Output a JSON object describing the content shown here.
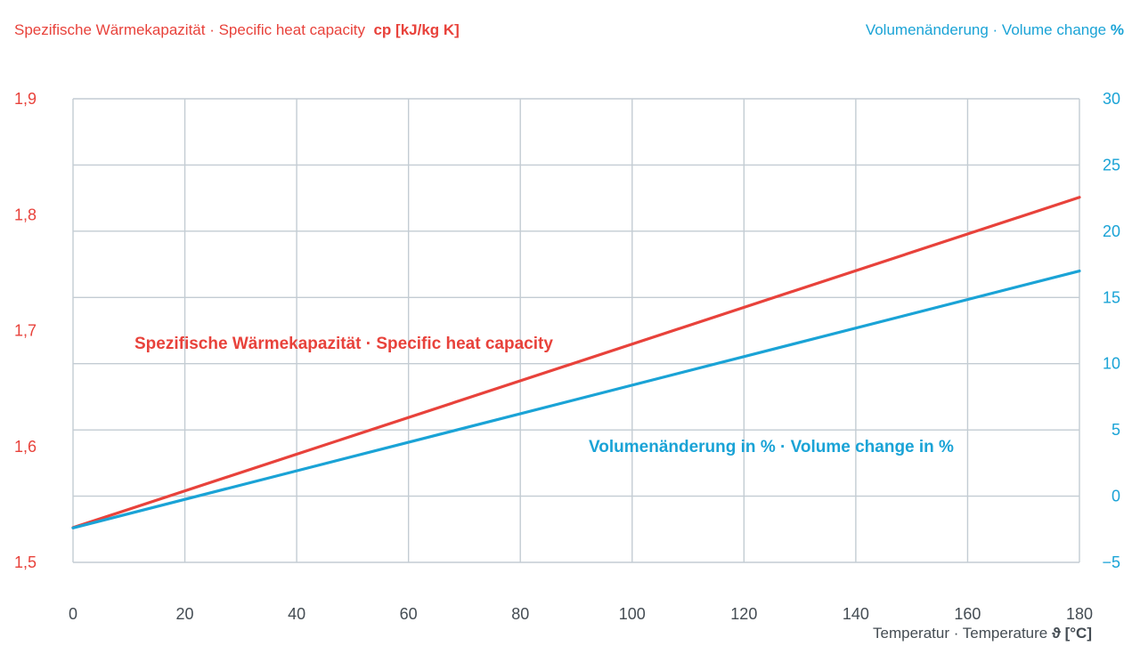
{
  "header": {
    "left_label": "Spezifische Wärmekapazität · Specific heat capacity",
    "left_unit": "cp [kJ/kg K]",
    "right_label": "Volumenänderung · Volume change",
    "right_unit": "%"
  },
  "x_axis_label": {
    "text": "Temperatur · Temperature",
    "unit": "ϑ [°C]"
  },
  "colors": {
    "heat": "#e8423b",
    "volume": "#1aa3d6",
    "grid": "#c3ccd3",
    "tick_x": "#444c53"
  },
  "chart_data": {
    "type": "line",
    "x": [
      0,
      180
    ],
    "xlim": [
      0,
      180
    ],
    "xticks": [
      "0",
      "20",
      "40",
      "60",
      "80",
      "100",
      "120",
      "140",
      "160",
      "180"
    ],
    "xtick_values": [
      0,
      20,
      40,
      60,
      80,
      100,
      120,
      140,
      160,
      180
    ],
    "y_left": {
      "ylim": [
        1.5,
        1.9
      ],
      "ticks": [
        "1,5",
        "1,6",
        "1,7",
        "1,8",
        "1,9"
      ],
      "tick_values": [
        1.5,
        1.6,
        1.7,
        1.8,
        1.9
      ]
    },
    "y_right": {
      "ylim": [
        -5,
        30
      ],
      "ticks": [
        "−5",
        "0",
        "5",
        "10",
        "15",
        "20",
        "25",
        "30"
      ],
      "tick_values": [
        -5,
        0,
        5,
        10,
        15,
        20,
        25,
        30
      ]
    },
    "grid": true,
    "series": [
      {
        "name": "Spezifische Wärmekapazität · Specific heat capacity",
        "axis": "left",
        "x": [
          0,
          180
        ],
        "y": [
          1.53,
          1.815
        ]
      },
      {
        "name": "Volumenänderung in % · Volume change in %",
        "axis": "right",
        "x": [
          0,
          180
        ],
        "y": [
          -2.4,
          17.0
        ]
      }
    ]
  }
}
